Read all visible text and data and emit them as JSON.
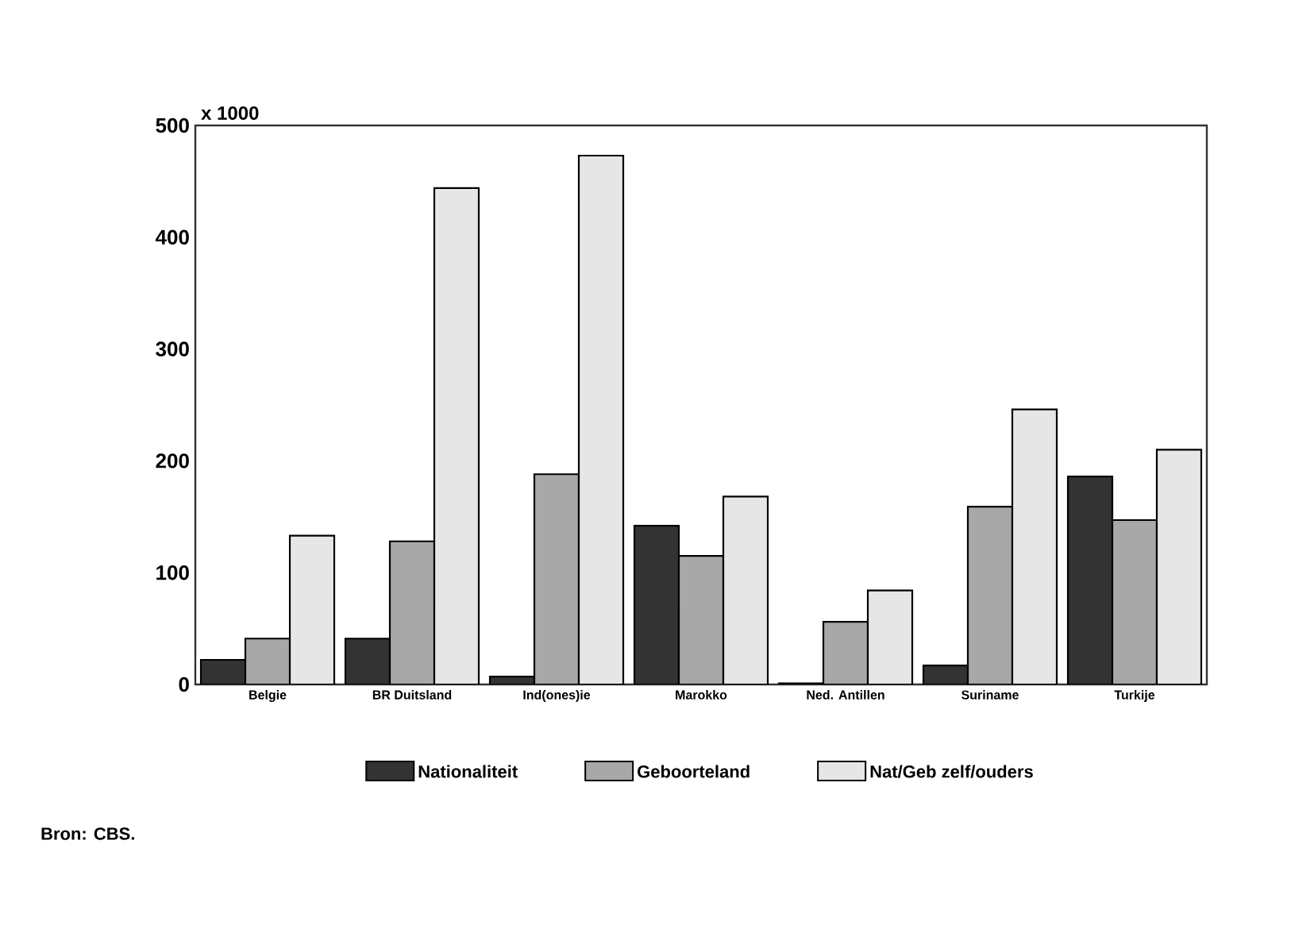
{
  "chart_data": {
    "type": "bar",
    "ylabel": "x 1000",
    "categories": [
      "Belgie",
      "BR Duitsland",
      "Ind(ones)ie",
      "Marokko",
      "Ned. Antillen",
      "Suriname",
      "Turkije"
    ],
    "series": [
      {
        "name": "Nationaliteit",
        "color": "#333333",
        "values": [
          22,
          41,
          7,
          142,
          1,
          17,
          186
        ]
      },
      {
        "name": "Geboorteland",
        "color": "#a8a8a8",
        "values": [
          41,
          128,
          188,
          115,
          56,
          159,
          147
        ]
      },
      {
        "name": "Nat/Geb zelf/ouders",
        "color": "#e6e6e6",
        "values": [
          133,
          444,
          473,
          168,
          84,
          246,
          210
        ]
      }
    ],
    "ylim": [
      0,
      500
    ],
    "yticks": [
      0,
      100,
      200,
      300,
      400,
      500
    ],
    "legend": "bottom",
    "annotations": [
      "Bron: CBS."
    ]
  }
}
